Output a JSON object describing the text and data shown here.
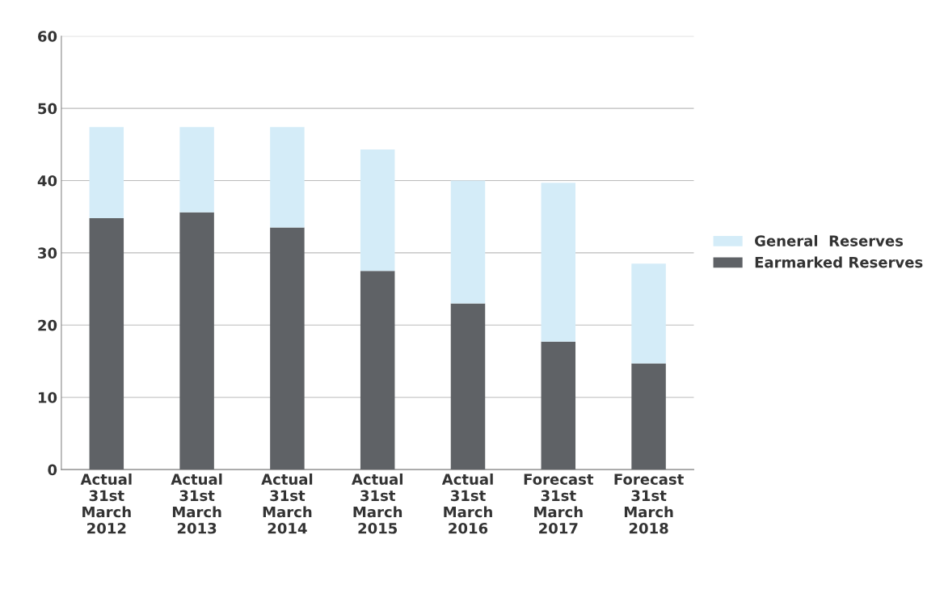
{
  "chart_data": {
    "type": "bar",
    "stacked": true,
    "categories": [
      "Actual\n31st\nMarch\n2012",
      "Actual\n31st\nMarch\n2013",
      "Actual\n31st\nMarch\n2014",
      "Actual\n31st\nMarch\n2015",
      "Actual\n31st\nMarch\n2016",
      "Forecast\n31st\nMarch\n2017",
      "Forecast\n31st\nMarch\n2018"
    ],
    "series": [
      {
        "name": "Earmarked Reserves",
        "color": "#5f6266",
        "values": [
          34.8,
          35.6,
          33.5,
          27.5,
          23.0,
          17.7,
          14.7
        ]
      },
      {
        "name": "General  Reserves",
        "color": "#d4ecf8",
        "values": [
          12.6,
          11.8,
          13.9,
          16.8,
          17.0,
          22.0,
          13.8
        ]
      }
    ],
    "ylim": [
      0,
      60
    ],
    "yticks": [
      0,
      10,
      20,
      30,
      40,
      50,
      60
    ],
    "grid": "y",
    "legend": "right"
  }
}
